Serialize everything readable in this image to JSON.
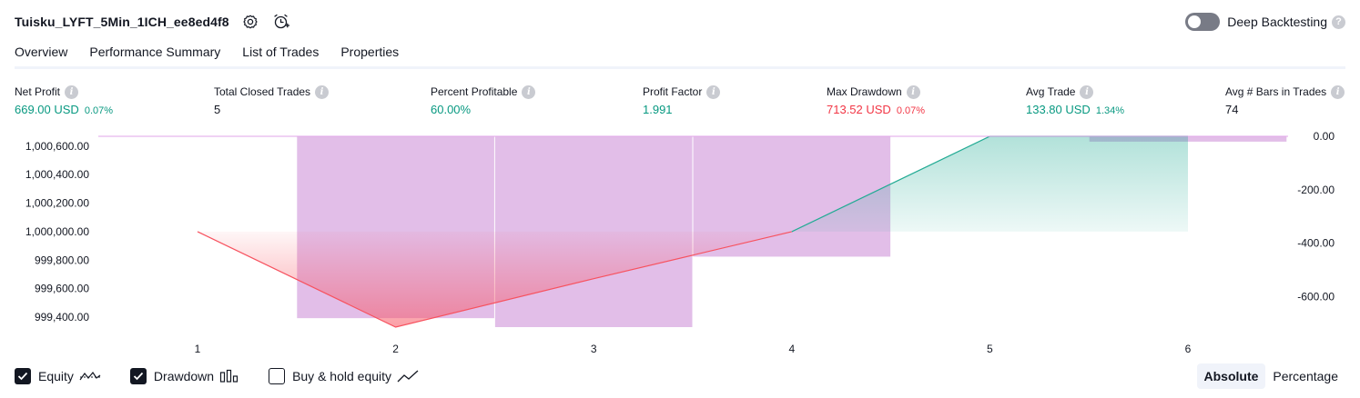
{
  "header": {
    "title": "Tuisku_LYFT_5Min_1ICH_ee8ed4f8",
    "icons": [
      "settings-icon",
      "add-alert-icon"
    ]
  },
  "deep_backtesting": {
    "label": "Deep Backtesting",
    "enabled": false,
    "help_icon": "question-icon"
  },
  "tabs": [
    {
      "label": "Overview",
      "active": true
    },
    {
      "label": "Performance Summary",
      "active": false
    },
    {
      "label": "List of Trades",
      "active": false
    },
    {
      "label": "Properties",
      "active": false
    }
  ],
  "metrics": [
    {
      "label": "Net Profit",
      "value": "669.00 USD",
      "pct": "0.07%",
      "tone": "pos"
    },
    {
      "label": "Total Closed Trades",
      "value": "5",
      "pct": "",
      "tone": "neu"
    },
    {
      "label": "Percent Profitable",
      "value": "60.00%",
      "pct": "",
      "tone": "pos"
    },
    {
      "label": "Profit Factor",
      "value": "1.991",
      "pct": "",
      "tone": "pos"
    },
    {
      "label": "Max Drawdown",
      "value": "713.52 USD",
      "pct": "0.07%",
      "tone": "neg"
    },
    {
      "label": "Avg Trade",
      "value": "133.80 USD",
      "pct": "1.34%",
      "tone": "pos"
    },
    {
      "label": "Avg # Bars in Trades",
      "value": "74",
      "pct": "",
      "tone": "neu"
    }
  ],
  "colors": {
    "positive": "#089981",
    "negative": "#f23645",
    "drawdown_bar": "#ce93d8",
    "equity_up": "#22ab94",
    "equity_down": "#f7525f"
  },
  "chart_data": {
    "type": "area",
    "x": [
      1,
      2,
      3,
      4,
      5,
      6
    ],
    "left_axis": {
      "ticks": [
        "1,000,600.00",
        "1,000,400.00",
        "1,000,200.00",
        "1,000,000.00",
        "999,800.00",
        "999,600.00",
        "999,400.00"
      ],
      "ylim": [
        999330,
        1000669
      ]
    },
    "right_axis": {
      "ticks": [
        "0.00",
        "-200.00",
        "-400.00",
        "-600.00"
      ],
      "ylim": [
        -713.52,
        0
      ]
    },
    "baseline": 1000000,
    "series": [
      {
        "name": "Equity",
        "values": [
          1000000,
          999330,
          999670,
          1000000,
          1000669,
          1000669
        ]
      },
      {
        "name": "Drawdown",
        "bars": [
          {
            "from": 1.5,
            "to": 2.5,
            "value": -680
          },
          {
            "from": 2.5,
            "to": 3.5,
            "value": -713.52
          },
          {
            "from": 3.5,
            "to": 4.5,
            "value": -450
          },
          {
            "from": 5.5,
            "to": 6.5,
            "value": -20
          }
        ]
      }
    ]
  },
  "legend": [
    {
      "label": "Equity",
      "checked": true,
      "icon": "equity-line-icon"
    },
    {
      "label": "Drawdown",
      "checked": true,
      "icon": "drawdown-bars-icon"
    },
    {
      "label": "Buy & hold equity",
      "checked": false,
      "icon": "buy-hold-line-icon"
    }
  ],
  "view_toggle": {
    "options": [
      "Absolute",
      "Percentage"
    ],
    "selected": "Absolute"
  }
}
